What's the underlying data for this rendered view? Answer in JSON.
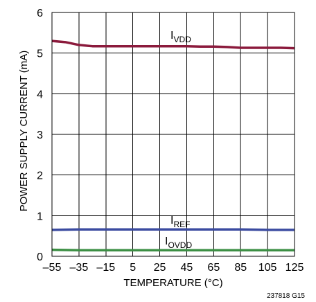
{
  "chart_data": {
    "type": "line",
    "title": "",
    "xlabel": "TEMPERATURE (°C)",
    "ylabel": "POWER SUPPLY CURRENT (mA)",
    "xlim": [
      -55,
      125
    ],
    "ylim": [
      0,
      6
    ],
    "x_ticks": [
      -55,
      -35,
      -15,
      5,
      25,
      45,
      65,
      85,
      105,
      125
    ],
    "y_ticks": [
      0,
      1,
      2,
      3,
      4,
      5,
      6
    ],
    "grid": true,
    "reference": "237818 G15",
    "series": [
      {
        "name": "IVDD",
        "label_main": "I",
        "label_sub": "VDD",
        "color": "#8B1A3C",
        "x": [
          -55,
          -45,
          -35,
          -25,
          -15,
          -5,
          5,
          15,
          25,
          35,
          45,
          55,
          65,
          75,
          85,
          95,
          105,
          115,
          125
        ],
        "y": [
          5.3,
          5.27,
          5.2,
          5.17,
          5.17,
          5.17,
          5.17,
          5.17,
          5.17,
          5.17,
          5.17,
          5.16,
          5.16,
          5.15,
          5.13,
          5.13,
          5.13,
          5.13,
          5.12
        ]
      },
      {
        "name": "IREF",
        "label_main": "I",
        "label_sub": "REF",
        "color": "#3B4BA0",
        "x": [
          -55,
          -35,
          -15,
          5,
          25,
          45,
          65,
          85,
          105,
          125
        ],
        "y": [
          0.65,
          0.66,
          0.66,
          0.66,
          0.66,
          0.66,
          0.66,
          0.66,
          0.65,
          0.65
        ]
      },
      {
        "name": "IOVDD",
        "label_main": "I",
        "label_sub": "OVDD",
        "color": "#3C8F44",
        "x": [
          -55,
          -35,
          -15,
          5,
          25,
          45,
          65,
          85,
          105,
          125
        ],
        "y": [
          0.16,
          0.15,
          0.15,
          0.15,
          0.15,
          0.15,
          0.15,
          0.15,
          0.15,
          0.15
        ]
      }
    ]
  }
}
